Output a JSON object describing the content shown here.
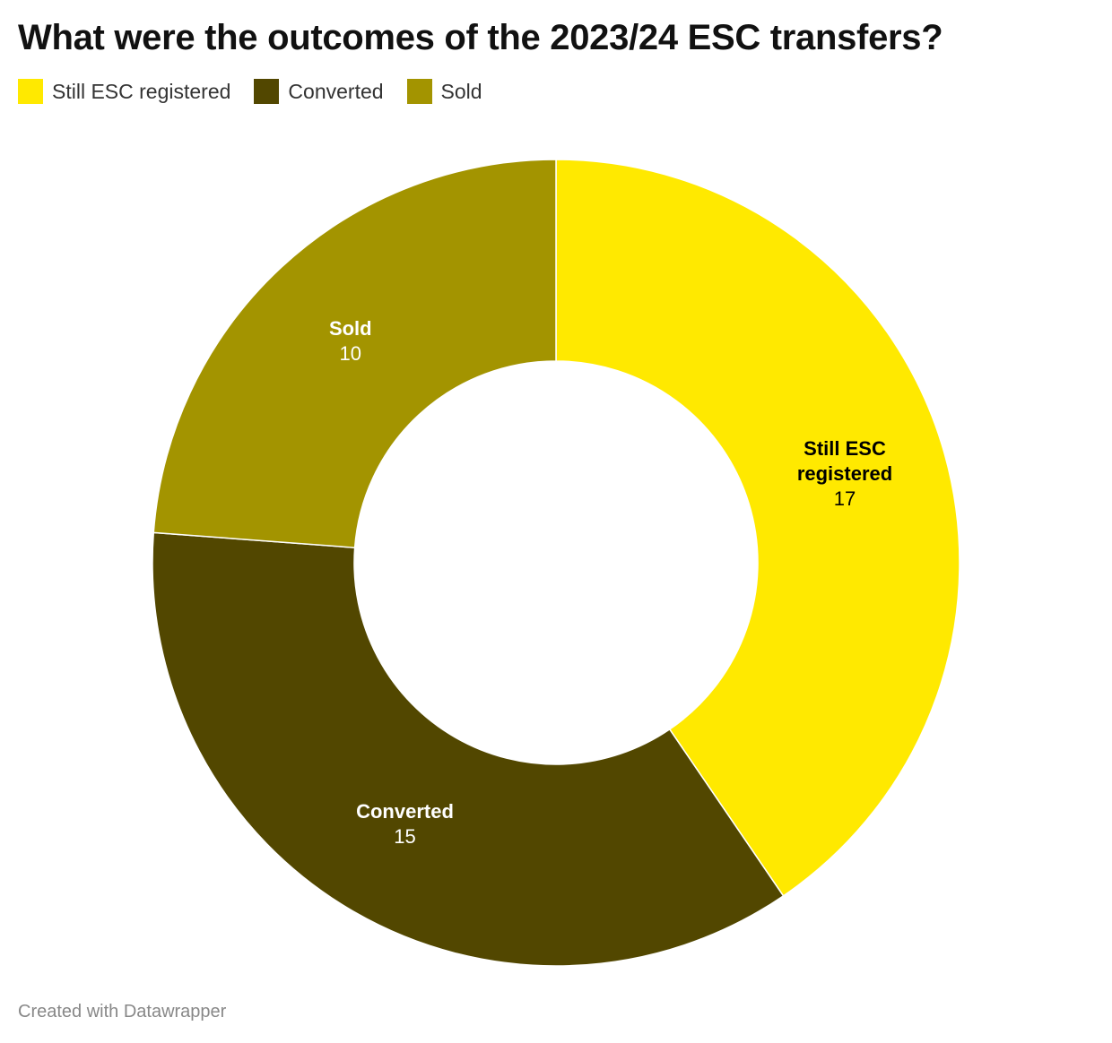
{
  "chart_data": {
    "type": "donut",
    "title": "What were the outcomes of the 2023/24 ESC transfers?",
    "categories": [
      "Still ESC registered",
      "Converted",
      "Sold"
    ],
    "values": [
      17,
      15,
      10
    ],
    "colors": [
      "#ffe900",
      "#524700",
      "#a39400"
    ],
    "footer": "Created with Datawrapper"
  }
}
